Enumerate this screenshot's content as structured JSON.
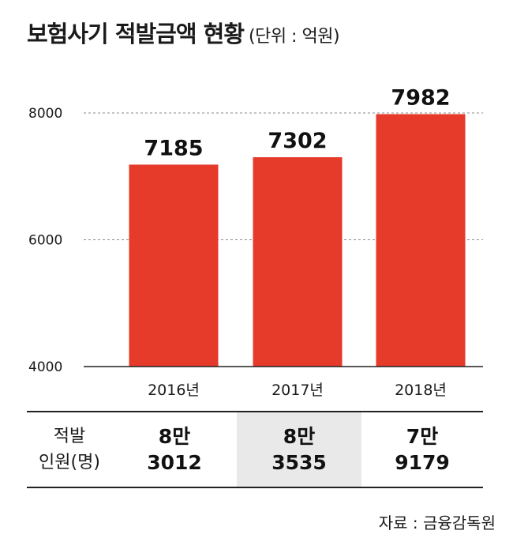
{
  "header": {
    "title": "보험사기 적발금액 현황",
    "unit": "(단위 : 억원)"
  },
  "chart_data": {
    "type": "bar",
    "title": "보험사기 적발금액 현황",
    "unit": "(단위 : 억원)",
    "categories": [
      "2016년",
      "2017년",
      "2018년"
    ],
    "values": [
      7185,
      7302,
      7982
    ],
    "data_labels": [
      "7185",
      "7302",
      "7982"
    ],
    "ylim": [
      4000,
      8000
    ],
    "yticks": [
      4000,
      6000,
      8000
    ],
    "ytick_labels": [
      "4000",
      "6000",
      "8000"
    ],
    "grid": "dashed horizontal at 6000 and 8000",
    "bar_color": "#e63a2b"
  },
  "table": {
    "header_line1": "적발",
    "header_line2": "인원(명)",
    "cells": [
      {
        "line1": "8만",
        "line2": "3012"
      },
      {
        "line1": "8만",
        "line2": "3535"
      },
      {
        "line1": "7만",
        "line2": "9179"
      }
    ]
  },
  "source": "자료 : 금융감독원"
}
